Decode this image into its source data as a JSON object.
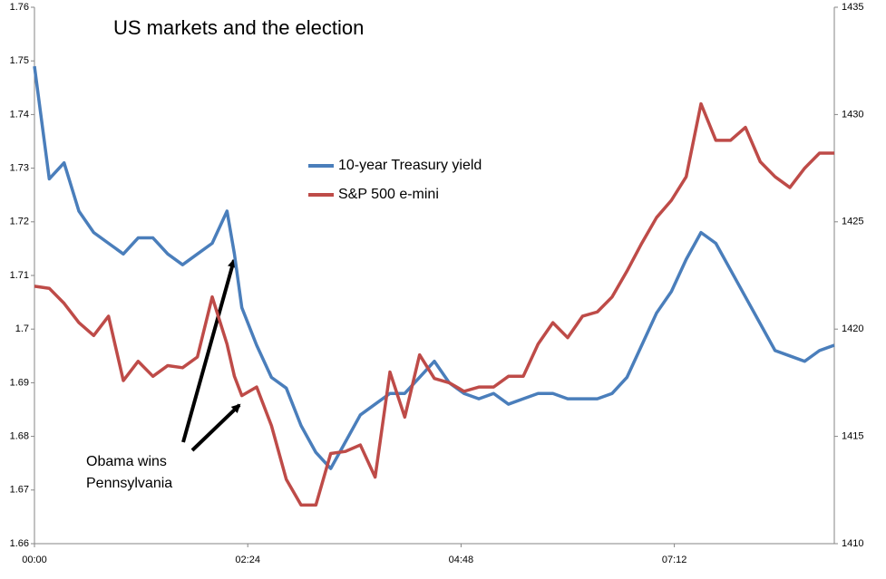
{
  "chart_data": {
    "type": "line",
    "title": "US markets and the election",
    "annotation": [
      "Obama wins",
      "Pennsylvania"
    ],
    "x": [
      0,
      10,
      20,
      30,
      40,
      50,
      60,
      70,
      80,
      90,
      100,
      110,
      120,
      130,
      135,
      140,
      150,
      160,
      170,
      180,
      190,
      200,
      210,
      220,
      230,
      240,
      250,
      260,
      270,
      280,
      290,
      300,
      310,
      320,
      330,
      340,
      350,
      360,
      370,
      380,
      390,
      400,
      410,
      420,
      430,
      440,
      450,
      460,
      470,
      480,
      490,
      500,
      510,
      520,
      530,
      540
    ],
    "xlim": [
      0,
      540
    ],
    "xticks": [
      {
        "value": 0,
        "label": "00:00"
      },
      {
        "value": 144,
        "label": "02:24"
      },
      {
        "value": 288,
        "label": "04:48"
      },
      {
        "value": 432,
        "label": "07:12"
      }
    ],
    "ylim": [
      1.66,
      1.76
    ],
    "yticks": [
      1.66,
      1.67,
      1.68,
      1.69,
      1.7,
      1.71,
      1.72,
      1.73,
      1.74,
      1.75,
      1.76
    ],
    "y2lim": [
      1410,
      1435
    ],
    "y2ticks": [
      1410,
      1415,
      1420,
      1425,
      1430,
      1435
    ],
    "series": [
      {
        "name": "10-year Treasury yield",
        "color": "#4a7ebb",
        "values": [
          1.749,
          1.728,
          1.731,
          1.722,
          1.718,
          1.716,
          1.714,
          1.717,
          1.717,
          1.714,
          1.712,
          1.714,
          1.716,
          1.722,
          1.714,
          1.704,
          1.697,
          1.691,
          1.689,
          1.682,
          1.677,
          1.674,
          1.679,
          1.684,
          1.686,
          1.688,
          1.688,
          1.691,
          1.694,
          1.69,
          1.688,
          1.687,
          1.688,
          1.686,
          1.687,
          1.688,
          1.688,
          1.687,
          1.687,
          1.687,
          1.688,
          1.691,
          1.697,
          1.703,
          1.707,
          1.713,
          1.718,
          1.716,
          1.711,
          1.706,
          1.701,
          1.696,
          1.695,
          1.694,
          1.696,
          1.697
        ]
      },
      {
        "name": "S&P 500 e-mini",
        "color": "#be4b48",
        "axis": "y2",
        "values": [
          1422.0,
          1421.9,
          1421.2,
          1420.3,
          1419.7,
          1420.6,
          1417.6,
          1418.5,
          1417.8,
          1418.3,
          1418.2,
          1418.7,
          1421.5,
          1419.3,
          1417.8,
          1416.9,
          1417.3,
          1415.5,
          1413.0,
          1411.8,
          1411.8,
          1414.2,
          1414.3,
          1414.6,
          1413.1,
          1418.0,
          1415.9,
          1418.8,
          1417.7,
          1417.5,
          1417.1,
          1417.3,
          1417.3,
          1417.8,
          1417.8,
          1419.3,
          1420.3,
          1419.6,
          1420.6,
          1420.8,
          1421.5,
          1422.7,
          1424.0,
          1425.2,
          1426.0,
          1427.1,
          1430.5,
          1428.8,
          1428.8,
          1429.4,
          1427.8,
          1427.1,
          1426.6,
          1427.5,
          1428.2,
          1428.2
        ]
      }
    ]
  }
}
